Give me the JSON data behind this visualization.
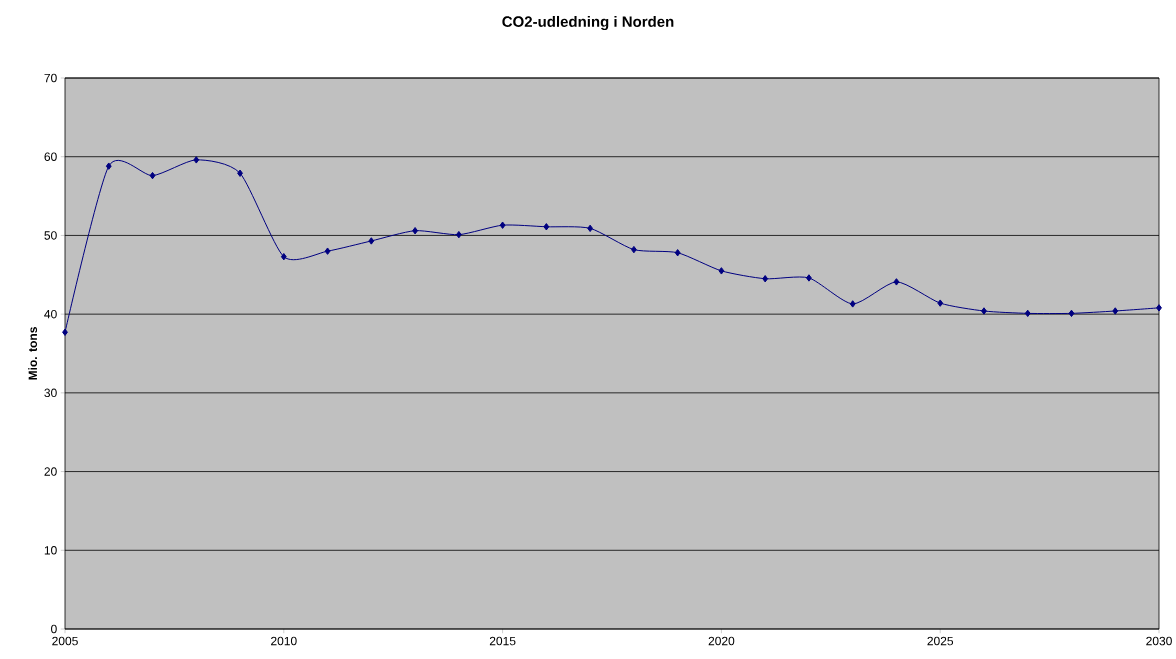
{
  "chart_data": {
    "type": "line",
    "title": "CO2-udledning i Norden",
    "ylabel": "Mio. tons",
    "x": [
      2005,
      2006,
      2007,
      2008,
      2009,
      2010,
      2011,
      2012,
      2013,
      2014,
      2015,
      2016,
      2017,
      2018,
      2019,
      2020,
      2021,
      2022,
      2023,
      2024,
      2025,
      2026,
      2027,
      2028,
      2029,
      2030
    ],
    "series": [
      {
        "color": "#000080",
        "values": [
          37.7,
          58.8,
          57.6,
          59.6,
          57.9,
          47.3,
          48.0,
          49.3,
          50.6,
          50.1,
          51.3,
          51.1,
          50.9,
          48.2,
          47.8,
          45.5,
          44.5,
          44.6,
          41.3,
          44.1,
          41.4,
          40.4,
          40.1,
          40.1,
          40.4,
          40.8
        ]
      }
    ],
    "xlim": [
      2005,
      2030
    ],
    "xticks": [
      2005,
      2010,
      2015,
      2020,
      2025,
      2030
    ],
    "ylim": [
      0,
      70
    ],
    "yticks": [
      0,
      10,
      20,
      30,
      40,
      50,
      60,
      70
    ],
    "grid": "y",
    "marker": "diamond",
    "line_style": "solid"
  }
}
